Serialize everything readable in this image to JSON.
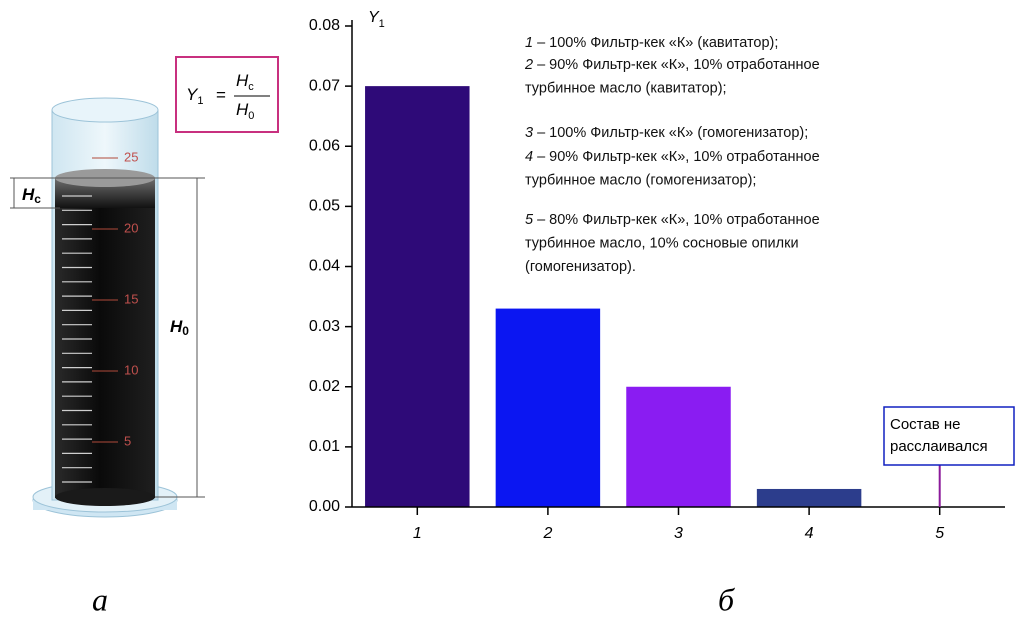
{
  "chart_data": {
    "type": "bar",
    "ylabel": "Y",
    "ylabel_subscript": "1",
    "categories": [
      "1",
      "2",
      "3",
      "4",
      "5"
    ],
    "values": [
      0.07,
      0.033,
      0.02,
      0.003,
      0
    ],
    "colors": [
      "#2e0a78",
      "#0b16f2",
      "#8a1cf2",
      "#2c3d8c",
      "#8b1a9a"
    ],
    "ylim": [
      0,
      0.08
    ],
    "yticks": [
      {
        "value": 0,
        "label": "0.00"
      },
      0.01,
      0.02,
      0.03,
      0.04,
      0.05,
      0.06,
      0.07,
      0.08
    ],
    "annotation": {
      "category": 4,
      "lines": [
        "Состав не",
        "расслаивался"
      ]
    },
    "notes": [
      {
        "number": "1",
        "lines": [
          "– 100% Фильтр-кек «К» (кавитатор);"
        ]
      },
      {
        "number": "2",
        "lines": [
          "– 90% Фильтр-кек «К», 10% отработанное",
          "турбинное масло (кавитатор);"
        ]
      },
      {
        "number": "3",
        "lines": [
          "– 100% Фильтр-кек «К» (гомогенизатор);"
        ]
      },
      {
        "number": "4",
        "lines": [
          "– 90% Фильтр-кек «К», 10% отработанное",
          "турбинное масло (гомогенизатор);"
        ]
      },
      {
        "number": "5",
        "lines": [
          "– 80% Фильтр-кек «К», 10% отработанное",
          "турбинное масло, 10% сосновые опилки",
          "(гомогенизатор)."
        ]
      }
    ],
    "panel_label": "б"
  },
  "diagram": {
    "panel_label": "а",
    "scale_labels": [
      "25",
      "20",
      "15",
      "10",
      "5"
    ],
    "hc": {
      "main": "H",
      "sub": "c"
    },
    "h0": {
      "main": "H",
      "sub": "0"
    },
    "formula": {
      "lhs": "Y",
      "lhs_sub": "1",
      "eq": "=",
      "num": "H",
      "num_sub": "c",
      "den": "H",
      "den_sub": "0"
    }
  }
}
